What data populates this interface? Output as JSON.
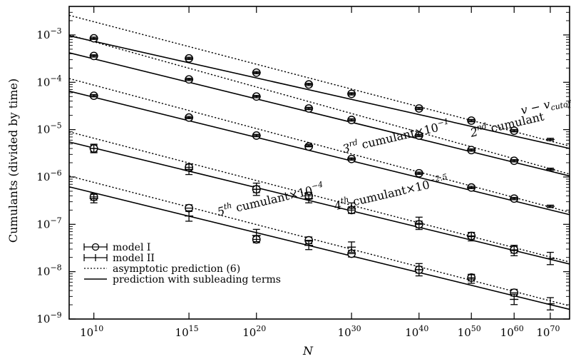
{
  "chart_data": {
    "type": "scatter",
    "x_scale": "log-log-N",
    "y_scale": "log",
    "xlabel": "N",
    "ylabel": "Cumulants (divided by time)",
    "xlim": [
      1000000000.0,
      1e+76
    ],
    "ylim": [
      1e-09,
      0.004
    ],
    "grid": false,
    "legend_position": "bottom-left",
    "x_ticks": [
      {
        "value": 10000000000.0,
        "label_mant": "10",
        "label_exp": "10"
      },
      {
        "value": 1000000000000000.0,
        "label_mant": "10",
        "label_exp": "15"
      },
      {
        "value": 1e+20,
        "label_mant": "10",
        "label_exp": "20"
      },
      {
        "value": 1e+30,
        "label_mant": "10",
        "label_exp": "30"
      },
      {
        "value": 1e+40,
        "label_mant": "10",
        "label_exp": "40"
      },
      {
        "value": 1e+50,
        "label_mant": "10",
        "label_exp": "50"
      },
      {
        "value": 1e+60,
        "label_mant": "10",
        "label_exp": "60"
      },
      {
        "value": 1e+70,
        "label_mant": "10",
        "label_exp": "70"
      }
    ],
    "y_ticks": [
      {
        "value": 0.001,
        "label_mant": "10",
        "label_exp": "−3"
      },
      {
        "value": 0.0001,
        "label_mant": "10",
        "label_exp": "−4"
      },
      {
        "value": 1e-05,
        "label_mant": "10",
        "label_exp": "−5"
      },
      {
        "value": 1e-06,
        "label_mant": "10",
        "label_exp": "−6"
      },
      {
        "value": 1e-07,
        "label_mant": "10",
        "label_exp": "−7"
      },
      {
        "value": 1e-08,
        "label_mant": "10",
        "label_exp": "−8"
      },
      {
        "value": 1e-09,
        "label_mant": "10",
        "label_exp": "−9"
      }
    ],
    "series": [
      {
        "name": "v − v_cutoff",
        "model_I": {
          "x": [
            10000000000.0,
            1000000000000000.0,
            1e+20,
            1e+25,
            1e+30,
            1e+40,
            1e+50,
            1e+60
          ],
          "y": [
            0.00085,
            0.00032,
            0.00016,
            9e-05,
            5.7e-05,
            2.8e-05,
            1.55e-05,
            9.5e-06
          ]
        },
        "model_II": {
          "x": [
            10000000000.0,
            1000000000000000.0,
            1e+20,
            1e+25,
            1e+30,
            1e+40,
            1e+50,
            1e+60,
            1e+70
          ],
          "y": [
            0.00085,
            0.00032,
            0.00016,
            9e-05,
            5.7e-05,
            2.8e-05,
            1.55e-05,
            9.5e-06,
            6.2e-06
          ]
        },
        "asymptotic": {
          "y": [
            0.0026,
            4.5e-06
          ]
        },
        "subleading": {
          "y": [
            0.00096,
            4e-06
          ]
        }
      },
      {
        "name": "2nd cumulant",
        "model_I": {
          "x": [
            10000000000.0,
            1000000000000000.0,
            1e+20,
            1e+25,
            1e+30,
            1e+40,
            1e+50,
            1e+60
          ],
          "y": [
            0.00036,
            0.000115,
            5e-05,
            2.8e-05,
            1.6e-05,
            7.5e-06,
            3.7e-06,
            2.2e-06
          ]
        },
        "model_II": {
          "x": [
            10000000000.0,
            1000000000000000.0,
            1e+20,
            1e+25,
            1e+30,
            1e+40,
            1e+50,
            1e+60,
            1e+70
          ],
          "y": [
            0.00036,
            0.000115,
            5e-05,
            2.8e-05,
            1.6e-05,
            7.5e-06,
            3.7e-06,
            2.2e-06,
            1.45e-06
          ]
        },
        "asymptotic": {
          "y": [
            0.001,
            1.15e-06
          ]
        },
        "subleading": {
          "y": [
            0.00042,
            1.05e-06
          ]
        }
      },
      {
        "name": "3rd cumulant×10^−1",
        "model_I": {
          "x": [
            10000000000.0,
            1000000000000000.0,
            1e+20,
            1e+25,
            1e+30,
            1e+40,
            1e+50,
            1e+60
          ],
          "y": [
            5.2e-05,
            1.8e-05,
            7.5e-06,
            4.4e-06,
            2.4e-06,
            1.2e-06,
            6e-07,
            3.5e-07
          ]
        },
        "model_II": {
          "x": [
            10000000000.0,
            1000000000000000.0,
            1e+20,
            1e+25,
            1e+30,
            1e+40,
            1e+50,
            1e+60,
            1e+70
          ],
          "y": [
            5.2e-05,
            1.8e-05,
            7.5e-06,
            4.6e-06,
            2.4e-06,
            1.2e-06,
            6e-07,
            3.5e-07,
            2.4e-07
          ]
        },
        "asymptotic": {
          "y": [
            0.00012,
            1.8e-07
          ]
        },
        "subleading": {
          "y": [
            6.5e-05,
            1.6e-07
          ]
        }
      },
      {
        "name": "4th cumulant×10^−2.5",
        "model_I": {
          "x": [
            10000000000.0,
            1000000000000000.0,
            1e+20,
            1e+25,
            1e+30,
            1e+40,
            1e+50,
            1e+60
          ],
          "y": [
            4e-06,
            1.6e-06,
            5.5e-07,
            4e-07,
            2e-07,
            1e-07,
            5.7e-08,
            2.9e-08
          ]
        },
        "model_II": {
          "x": [
            10000000000.0,
            1000000000000000.0,
            1e+20,
            1e+25,
            1e+30,
            1e+40,
            1e+50,
            1e+60,
            1e+70
          ],
          "y": [
            4e-06,
            1.45e-06,
            5.5e-07,
            3.5e-07,
            2.2e-07,
            1.05e-07,
            5.5e-08,
            2.8e-08,
            1.9e-08
          ]
        },
        "asymptotic": {
          "y": [
            9e-06,
            1.6e-08
          ]
        },
        "subleading": {
          "y": [
            5.5e-06,
            1.45e-08
          ]
        }
      },
      {
        "name": "5th cumulant×10^−4",
        "model_I": {
          "x": [
            10000000000.0,
            1000000000000000.0,
            1e+20,
            1e+25,
            1e+30,
            1e+40,
            1e+50,
            1e+60
          ],
          "y": [
            3.8e-07,
            2.2e-07,
            4.8e-08,
            4.6e-08,
            2.4e-08,
            1.1e-08,
            7.5e-09,
            3.6e-09
          ]
        },
        "model_II": {
          "x": [
            10000000000.0,
            1000000000000000.0,
            1e+20,
            1e+25,
            1e+30,
            1e+40,
            1e+50,
            1e+60,
            1e+70
          ],
          "y": [
            3.5e-07,
            1.5e-07,
            5.8e-08,
            3.6e-08,
            3.3e-08,
            1.1e-08,
            7e-09,
            2.6e-09,
            2.1e-09
          ]
        },
        "asymptotic": {
          "y": [
            1.05e-06,
            1.9e-09
          ]
        },
        "subleading": {
          "y": [
            6.2e-07,
            1.6e-09
          ]
        }
      }
    ],
    "curve_labels": [
      {
        "main": "v − v",
        "sub": "cutoff",
        "x": 1e+62,
        "y": 2.1e-05,
        "angle": -13
      },
      {
        "main": "2",
        "sup": "nd",
        "rest": " cumulant",
        "x": 1e+50,
        "y": 7e-06,
        "angle": -13
      },
      {
        "main": "3",
        "sup": "rd",
        "rest": " cumulant×10",
        "sup2": "−1",
        "x": 1e+29,
        "y": 3.2e-06,
        "angle": -13
      },
      {
        "main": "4",
        "sup": "th",
        "rest": " cumulant×10",
        "sup2": "−2.5",
        "x": 1e+28,
        "y": 2e-07,
        "angle": -13
      },
      {
        "main": "5",
        "sup": "th",
        "rest": " cumulant×10",
        "sup2": "−4",
        "x": 1e+17,
        "y": 1.5e-07,
        "angle": -13
      }
    ],
    "legend": [
      {
        "marker": "circle-errorbar",
        "label": "model I"
      },
      {
        "marker": "plus-errorbar",
        "label": "model II"
      },
      {
        "marker": "dotted-line",
        "label": "asymptotic prediction (6)"
      },
      {
        "marker": "solid-line",
        "label": "prediction with subleading terms"
      }
    ]
  }
}
